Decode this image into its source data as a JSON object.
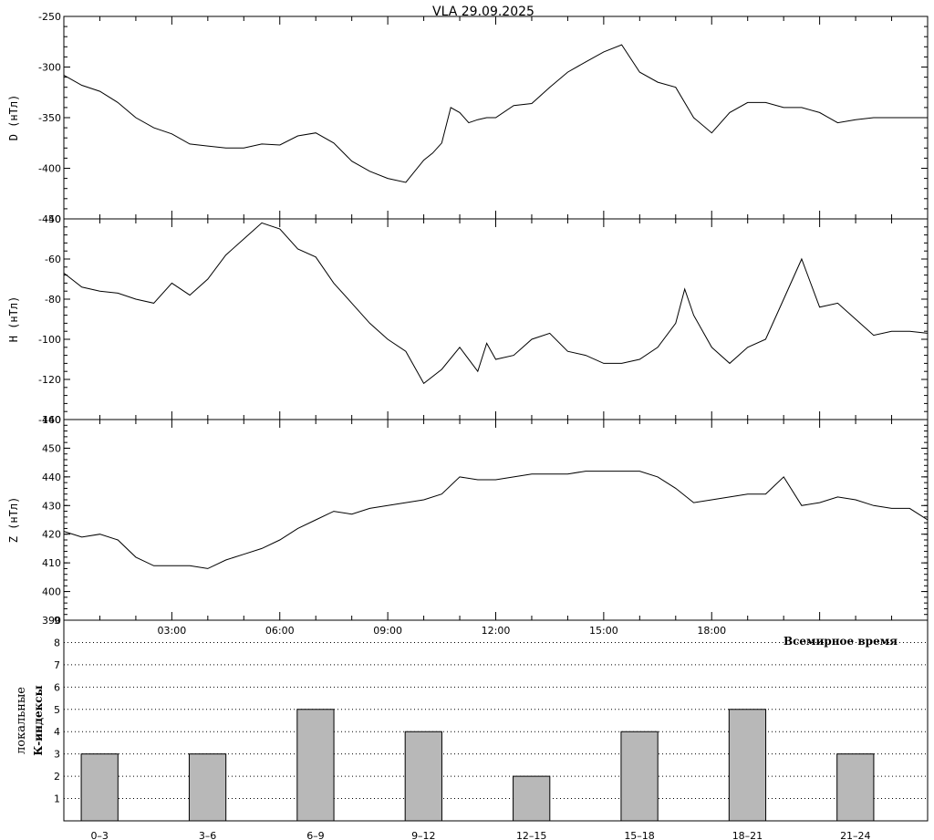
{
  "title": "VLA   29.09.2025",
  "time_axis_label": "Всемирное время",
  "k_axis_label_line1": "локальные",
  "k_axis_label_line2": "К-индексы",
  "chart_data": [
    {
      "type": "line",
      "name": "D",
      "ylabel": "D (нТл)",
      "ylim": [
        -450,
        -250
      ],
      "yticks": [
        -450,
        -400,
        -350,
        -300,
        -250
      ],
      "xlim": [
        0,
        24
      ],
      "x_unit": "hours UT",
      "series": [
        {
          "x": [
            0,
            0.5,
            1,
            1.5,
            2,
            2.5,
            3,
            3.5,
            4,
            4.5,
            5,
            5.5,
            6,
            6.5,
            7,
            7.5,
            8,
            8.5,
            9,
            9.5,
            10,
            10.25,
            10.5,
            10.75,
            11,
            11.25,
            11.5,
            11.75,
            12,
            12.5,
            13,
            13.5,
            14,
            14.5,
            15,
            15.5,
            16,
            16.5,
            17,
            17.5,
            18,
            18.5,
            19,
            19.5,
            20,
            20.5,
            21,
            21.5,
            22,
            22.5,
            23,
            23.5,
            24
          ],
          "y": [
            -308,
            -318,
            -324,
            -335,
            -350,
            -360,
            -366,
            -376,
            -378,
            -380,
            -380,
            -376,
            -377,
            -368,
            -365,
            -375,
            -393,
            -403,
            -410,
            -414,
            -392,
            -385,
            -375,
            -340,
            -345,
            -355,
            -352,
            -350,
            -350,
            -338,
            -336,
            -320,
            -305,
            -295,
            -285,
            -278,
            -305,
            -315,
            -320,
            -350,
            -365,
            -345,
            -335,
            -335,
            -340,
            -340,
            -345,
            -355,
            -352,
            -350,
            -350,
            -350,
            -350
          ]
        }
      ]
    },
    {
      "type": "line",
      "name": "H",
      "ylabel": "H (нТл)",
      "ylim": [
        -140,
        -40
      ],
      "yticks": [
        -140,
        -120,
        -100,
        -80,
        -60,
        -40
      ],
      "xlim": [
        0,
        24
      ],
      "x_unit": "hours UT",
      "series": [
        {
          "x": [
            0,
            0.5,
            1,
            1.5,
            2,
            2.5,
            3,
            3.5,
            4,
            4.5,
            5,
            5.5,
            6,
            6.5,
            7,
            7.5,
            8,
            8.5,
            9,
            9.5,
            10,
            10.5,
            11,
            11.5,
            11.75,
            12,
            12.5,
            13,
            13.5,
            14,
            14.5,
            15,
            15.5,
            16,
            16.5,
            17,
            17.25,
            17.5,
            18,
            18.5,
            19,
            19.5,
            20,
            20.5,
            21,
            21.5,
            22,
            22.5,
            23,
            23.5,
            24
          ],
          "y": [
            -67,
            -74,
            -76,
            -77,
            -80,
            -82,
            -72,
            -78,
            -70,
            -58,
            -50,
            -42,
            -45,
            -55,
            -59,
            -72,
            -82,
            -92,
            -100,
            -106,
            -122,
            -115,
            -104,
            -116,
            -102,
            -110,
            -108,
            -100,
            -97,
            -106,
            -108,
            -112,
            -112,
            -110,
            -104,
            -92,
            -75,
            -88,
            -104,
            -112,
            -104,
            -100,
            -80,
            -60,
            -84,
            -82,
            -90,
            -98,
            -96,
            -96,
            -97
          ]
        }
      ]
    },
    {
      "type": "line",
      "name": "Z",
      "ylabel": "Z (нТл)",
      "ylim": [
        390,
        460
      ],
      "yticks": [
        390,
        400,
        410,
        420,
        430,
        440,
        450,
        460
      ],
      "xlim": [
        0,
        24
      ],
      "x_unit": "hours UT",
      "xticks": [
        "03:00",
        "06:00",
        "09:00",
        "12:00",
        "15:00",
        "18:00"
      ],
      "series": [
        {
          "x": [
            0,
            0.5,
            1,
            1.5,
            2,
            2.5,
            3,
            3.5,
            4,
            4.5,
            5,
            5.5,
            6,
            6.5,
            7,
            7.5,
            8,
            8.5,
            9,
            9.5,
            10,
            10.5,
            11,
            11.5,
            12,
            12.5,
            13,
            13.5,
            14,
            14.5,
            15,
            15.5,
            16,
            16.5,
            17,
            17.5,
            18,
            18.5,
            19,
            19.5,
            20,
            20.5,
            21,
            21.5,
            22,
            22.5,
            23,
            23.5,
            24
          ],
          "y": [
            421,
            419,
            420,
            418,
            412,
            409,
            409,
            409,
            408,
            411,
            413,
            415,
            418,
            422,
            425,
            428,
            427,
            429,
            430,
            431,
            432,
            434,
            440,
            439,
            439,
            440,
            441,
            441,
            441,
            442,
            442,
            442,
            442,
            440,
            436,
            431,
            432,
            433,
            434,
            434,
            440,
            430,
            431,
            433,
            432,
            430,
            429,
            429,
            425
          ]
        }
      ]
    },
    {
      "type": "bar",
      "name": "K-index",
      "ylim": [
        0,
        9
      ],
      "yticks": [
        1,
        2,
        3,
        4,
        5,
        6,
        7,
        8,
        9
      ],
      "grid": "dotted horizontal",
      "categories": [
        "0–3",
        "3–6",
        "6–9",
        "9–12",
        "12–15",
        "15–18",
        "18–21",
        "21–24"
      ],
      "values": [
        3,
        3,
        5,
        4,
        2,
        4,
        5,
        3
      ]
    }
  ]
}
